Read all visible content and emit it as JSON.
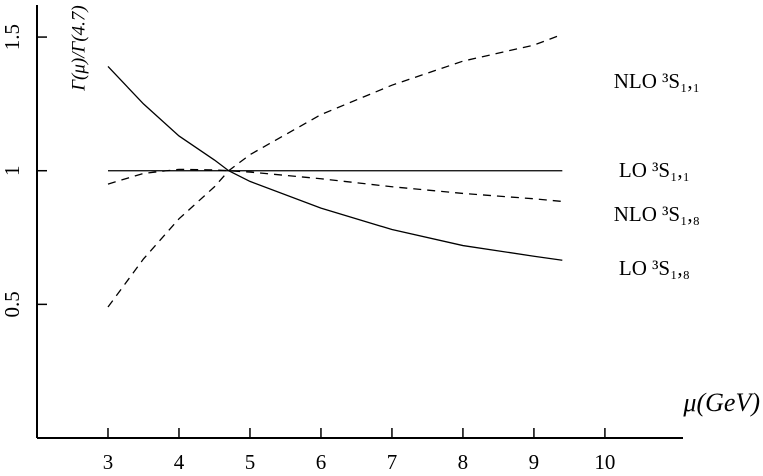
{
  "chart_data": {
    "type": "line",
    "ylabel": "Γ(μ)/Γ(4.7)",
    "xlabel": "μ(GeV)",
    "x": [
      3,
      3.5,
      4,
      4.5,
      4.7,
      5,
      6,
      7,
      8,
      9,
      9.4
    ],
    "series": [
      {
        "name": "NLO ³S₁,₁",
        "color": "#000000",
        "dashed": true,
        "values": [
          0.49,
          0.67,
          0.82,
          0.94,
          1.0,
          1.06,
          1.21,
          1.32,
          1.41,
          1.47,
          1.51
        ]
      },
      {
        "name": "LO ³S₁,₁",
        "color": "#000000",
        "dashed": false,
        "values": [
          1,
          1,
          1,
          1,
          1,
          1,
          1,
          1,
          1,
          1,
          1
        ]
      },
      {
        "name": "NLO ³S₁,₈",
        "color": "#000000",
        "dashed": true,
        "values": [
          0.95,
          0.99,
          1.005,
          1.003,
          1.0,
          0.995,
          0.97,
          0.94,
          0.915,
          0.895,
          0.885
        ]
      },
      {
        "name": "LO ³S₁,₈",
        "color": "#000000",
        "dashed": false,
        "values": [
          1.39,
          1.25,
          1.13,
          1.04,
          1.0,
          0.96,
          0.86,
          0.78,
          0.72,
          0.68,
          0.665
        ]
      }
    ],
    "xlim": [
      2,
      11.1
    ],
    "xticks": [
      3,
      4,
      5,
      6,
      7,
      8,
      9,
      10
    ],
    "ylim": [
      0,
      1.62
    ],
    "yticks": [
      0.5,
      1,
      1.5
    ]
  }
}
